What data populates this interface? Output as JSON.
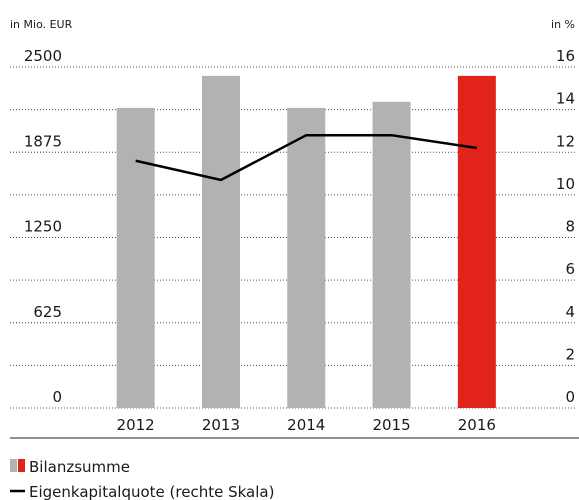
{
  "chart_data": {
    "type": "bar-line",
    "y_label": "in Mio. EUR",
    "y2_label": "in %",
    "categories": [
      "2012",
      "2013",
      "2014",
      "2015",
      "2016"
    ],
    "series": [
      {
        "name": "Bilanzsumme",
        "type": "bar",
        "color": "#b2b2b2",
        "colors": [
          "#b2b2b2",
          "#b2b2b2",
          "#b2b2b2",
          "#b2b2b2",
          "#e2231a"
        ],
        "values": [
          2200,
          2435,
          2200,
          2245,
          2435
        ]
      },
      {
        "name": "Eigenkapitalquote (rechte Skala)",
        "type": "line",
        "axis": "y2",
        "color": "#000000",
        "values": [
          11.6,
          10.7,
          12.8,
          12.8,
          12.2
        ]
      }
    ],
    "ylim": [
      0,
      2500
    ],
    "yticks": [
      0,
      625,
      1250,
      1875,
      2500
    ],
    "y2lim": [
      0,
      16
    ],
    "y2ticks": [
      0,
      2,
      4,
      6,
      8,
      10,
      12,
      14,
      16
    ],
    "grid": true
  }
}
